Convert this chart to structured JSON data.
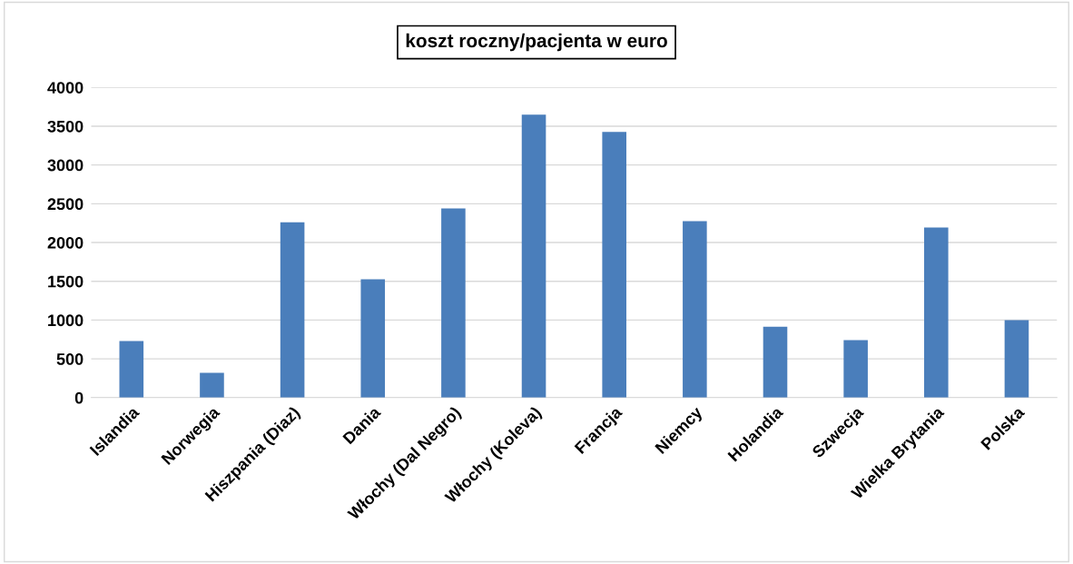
{
  "chart_data": {
    "type": "bar",
    "title": "koszt roczny/pacjenta w euro",
    "categories": [
      "Islandia",
      "Norwegia",
      "Hiszpania (Diaz)",
      "Dania",
      "Włochy (Dal Negro)",
      "Włochy (Koleva)",
      "Francja",
      "Niemcy",
      "Holandia",
      "Szwecja",
      "Wielka Brytania",
      "Polska"
    ],
    "values": [
      730,
      320,
      2260,
      1525,
      2440,
      3650,
      3425,
      2275,
      915,
      740,
      2195,
      1000
    ],
    "color": "#4a7ebb",
    "ylim": [
      0,
      4000
    ],
    "yticks": [
      0,
      500,
      1000,
      1500,
      2000,
      2500,
      3000,
      3500,
      4000
    ],
    "grid": "y",
    "legend": false
  }
}
